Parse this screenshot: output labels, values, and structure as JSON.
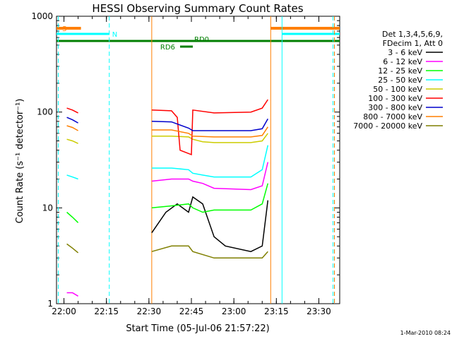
{
  "chart_data": {
    "type": "line",
    "title": "HESSI Observing Summary Count Rates",
    "xlabel": "Start Time (05-Jul-06 21:57:22)",
    "ylabel": "Count Rate (s⁻¹ detector⁻¹)",
    "yscale": "log",
    "ylim": [
      1,
      1000
    ],
    "xlim_minutes_since_start": [
      0,
      100
    ],
    "x_ticks": [
      "22:00",
      "22:15",
      "22:30",
      "22:45",
      "23:00",
      "23:15",
      "23:30"
    ],
    "y_ticks": [
      "1",
      "10",
      "100",
      "1000"
    ],
    "legend": {
      "header": [
        "Det 1,3,4,5,6,9,",
        "FDecim 1, Att 0"
      ],
      "position": "right"
    },
    "flags": {
      "S": {
        "label": "S",
        "color": "#ff7f00",
        "intervals": [
          [
            "21:57:22",
            "22:06"
          ],
          [
            "23:13",
            "23:38"
          ]
        ]
      },
      "N": {
        "label": "N",
        "color": "#00ffff",
        "intervals": [
          [
            "21:57:22",
            "22:16"
          ],
          [
            "23:17",
            "23:38"
          ]
        ]
      },
      "RD0": {
        "label": "RD0",
        "color": "#007f00"
      },
      "RD6": {
        "label": "RD6",
        "color": "#007f00"
      }
    },
    "series": [
      {
        "name": "3 - 6 keV",
        "color": "#000000",
        "segments": [
          [
            {
              "t": "22:31",
              "v": 5.5
            },
            {
              "t": "22:36",
              "v": 9
            },
            {
              "t": "22:40",
              "v": 11
            },
            {
              "t": "22:44",
              "v": 9
            },
            {
              "t": "22:45:30",
              "v": 13
            },
            {
              "t": "22:49",
              "v": 11
            },
            {
              "t": "22:53",
              "v": 5
            },
            {
              "t": "22:57",
              "v": 4
            },
            {
              "t": "23:06",
              "v": 3.5
            },
            {
              "t": "23:10",
              "v": 4
            },
            {
              "t": "23:12",
              "v": 12
            }
          ]
        ]
      },
      {
        "name": "6 - 12 keV",
        "color": "#ff00ff",
        "segments": [
          [
            {
              "t": "22:01",
              "v": 1.3
            },
            {
              "t": "22:03",
              "v": 1.3
            },
            {
              "t": "22:05",
              "v": 1.2
            }
          ],
          [
            {
              "t": "22:31",
              "v": 19
            },
            {
              "t": "22:38",
              "v": 20
            },
            {
              "t": "22:44",
              "v": 20
            },
            {
              "t": "22:45:30",
              "v": 19
            },
            {
              "t": "22:49",
              "v": 18
            },
            {
              "t": "22:53",
              "v": 16
            },
            {
              "t": "23:06",
              "v": 15.5
            },
            {
              "t": "23:10",
              "v": 17
            },
            {
              "t": "23:12",
              "v": 30
            }
          ]
        ]
      },
      {
        "name": "12 - 25 keV",
        "color": "#00ff00",
        "segments": [
          [
            {
              "t": "22:01",
              "v": 9
            },
            {
              "t": "22:03",
              "v": 8
            },
            {
              "t": "22:05",
              "v": 7
            }
          ],
          [
            {
              "t": "22:31",
              "v": 10
            },
            {
              "t": "22:38",
              "v": 10.5
            },
            {
              "t": "22:44",
              "v": 11
            },
            {
              "t": "22:45:30",
              "v": 10
            },
            {
              "t": "22:49",
              "v": 9
            },
            {
              "t": "22:53",
              "v": 9.5
            },
            {
              "t": "23:06",
              "v": 9.5
            },
            {
              "t": "23:10",
              "v": 11
            },
            {
              "t": "23:12",
              "v": 18
            }
          ]
        ]
      },
      {
        "name": "25 - 50 keV",
        "color": "#00ffff",
        "segments": [
          [
            {
              "t": "22:01",
              "v": 22
            },
            {
              "t": "22:03",
              "v": 21
            },
            {
              "t": "22:05",
              "v": 20
            }
          ],
          [
            {
              "t": "22:31",
              "v": 26
            },
            {
              "t": "22:38",
              "v": 26
            },
            {
              "t": "22:44",
              "v": 25
            },
            {
              "t": "22:45:30",
              "v": 23
            },
            {
              "t": "22:49",
              "v": 22
            },
            {
              "t": "22:53",
              "v": 21
            },
            {
              "t": "23:06",
              "v": 21
            },
            {
              "t": "23:10",
              "v": 25
            },
            {
              "t": "23:12",
              "v": 45
            }
          ]
        ]
      },
      {
        "name": "50 - 100 keV",
        "color": "#cccc00",
        "segments": [
          [
            {
              "t": "22:01",
              "v": 52
            },
            {
              "t": "22:03",
              "v": 50
            },
            {
              "t": "22:05",
              "v": 47
            }
          ],
          [
            {
              "t": "22:31",
              "v": 56
            },
            {
              "t": "22:38",
              "v": 56
            },
            {
              "t": "22:44",
              "v": 55
            },
            {
              "t": "22:45:30",
              "v": 52
            },
            {
              "t": "22:49",
              "v": 49
            },
            {
              "t": "22:53",
              "v": 48
            },
            {
              "t": "23:06",
              "v": 48
            },
            {
              "t": "23:10",
              "v": 50
            },
            {
              "t": "23:12",
              "v": 60
            }
          ]
        ]
      },
      {
        "name": "100 - 300 keV",
        "color": "#ff0000",
        "segments": [
          [
            {
              "t": "22:01",
              "v": 110
            },
            {
              "t": "22:03",
              "v": 105
            },
            {
              "t": "22:05",
              "v": 98
            }
          ],
          [
            {
              "t": "22:31",
              "v": 105
            },
            {
              "t": "22:38",
              "v": 103
            },
            {
              "t": "22:40",
              "v": 88
            },
            {
              "t": "22:41",
              "v": 40
            },
            {
              "t": "22:45",
              "v": 36
            },
            {
              "t": "22:45:30",
              "v": 105
            },
            {
              "t": "22:53",
              "v": 98
            },
            {
              "t": "23:06",
              "v": 100
            },
            {
              "t": "23:10",
              "v": 110
            },
            {
              "t": "23:12",
              "v": 135
            }
          ]
        ]
      },
      {
        "name": "300 - 800 keV",
        "color": "#0000cc",
        "segments": [
          [
            {
              "t": "22:01",
              "v": 88
            },
            {
              "t": "22:03",
              "v": 83
            },
            {
              "t": "22:05",
              "v": 77
            }
          ],
          [
            {
              "t": "22:31",
              "v": 80
            },
            {
              "t": "22:38",
              "v": 79
            },
            {
              "t": "22:44",
              "v": 68
            },
            {
              "t": "22:45:30",
              "v": 64
            },
            {
              "t": "22:53",
              "v": 64
            },
            {
              "t": "23:06",
              "v": 64
            },
            {
              "t": "23:10",
              "v": 67
            },
            {
              "t": "23:12",
              "v": 85
            }
          ]
        ]
      },
      {
        "name": "800 - 7000 keV",
        "color": "#ff7f00",
        "segments": [
          [
            {
              "t": "22:01",
              "v": 72
            },
            {
              "t": "22:03",
              "v": 69
            },
            {
              "t": "22:05",
              "v": 64
            }
          ],
          [
            {
              "t": "22:31",
              "v": 65
            },
            {
              "t": "22:38",
              "v": 65
            },
            {
              "t": "22:44",
              "v": 60
            },
            {
              "t": "22:45:30",
              "v": 56
            },
            {
              "t": "22:53",
              "v": 55
            },
            {
              "t": "23:06",
              "v": 55
            },
            {
              "t": "23:10",
              "v": 57
            },
            {
              "t": "23:12",
              "v": 70
            }
          ]
        ]
      },
      {
        "name": "7000 - 20000 keV",
        "color": "#7f7f00",
        "segments": [
          [
            {
              "t": "22:01",
              "v": 4.2
            },
            {
              "t": "22:03",
              "v": 3.8
            },
            {
              "t": "22:05",
              "v": 3.4
            }
          ],
          [
            {
              "t": "22:31",
              "v": 3.5
            },
            {
              "t": "22:38",
              "v": 4
            },
            {
              "t": "22:44",
              "v": 4
            },
            {
              "t": "22:45:30",
              "v": 3.5
            },
            {
              "t": "22:53",
              "v": 3
            },
            {
              "t": "23:06",
              "v": 3
            },
            {
              "t": "23:10",
              "v": 3
            },
            {
              "t": "23:12",
              "v": 3.5
            }
          ]
        ]
      }
    ]
  },
  "footer": {
    "stamp": "1-Mar-2010 08:24"
  }
}
